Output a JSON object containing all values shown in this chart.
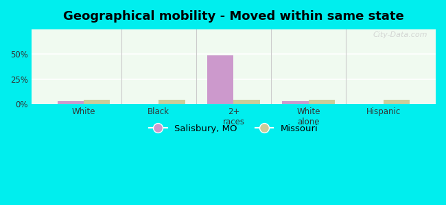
{
  "title": "Geographical mobility - Moved within same state",
  "categories": [
    "White",
    "Black",
    "2+\nraces",
    "White\nalone",
    "Hispanic"
  ],
  "salisbury_values": [
    3.0,
    0.0,
    49.0,
    3.0,
    0.0
  ],
  "missouri_values": [
    4.5,
    4.5,
    4.5,
    4.5,
    4.5
  ],
  "salisbury_color": "#cc99cc",
  "missouri_color": "#cccc99",
  "background_color": "#00eeee",
  "plot_bg_color": "#f0faf0",
  "ylim": [
    0,
    75
  ],
  "yticks": [
    0,
    25,
    50
  ],
  "ytick_labels": [
    "0%",
    "25%",
    "50%"
  ],
  "bar_width": 0.35,
  "legend_labels": [
    "Salisbury, MO",
    "Missouri"
  ],
  "watermark": "City-Data.com"
}
